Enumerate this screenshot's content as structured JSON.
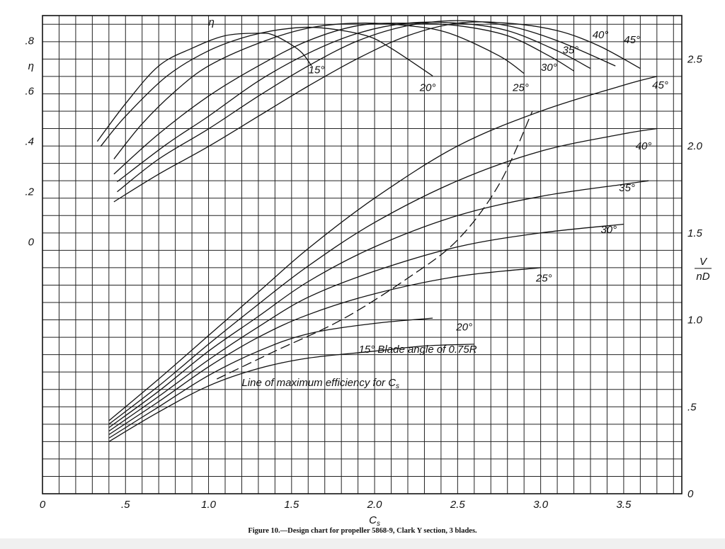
{
  "caption": "Figure 10.—Design chart for propeller 5868-9, Clark Y section, 3 blades.",
  "chart_data": {
    "type": "line",
    "title": "",
    "xlabel": "C",
    "xlabel_sub": "s",
    "xlim": [
      0,
      3.85
    ],
    "x_ticks": [
      0,
      0.5,
      1.0,
      1.5,
      2.0,
      2.5,
      3.0,
      3.5
    ],
    "x_tick_labels": [
      "0",
      ".5",
      "1.0",
      "1.5",
      "2.0",
      "2.5",
      "3.0",
      "3.5"
    ],
    "left_axis": {
      "label": "η",
      "ylim": [
        -1.0,
        0.9
      ],
      "ticks": [
        0,
        0.2,
        0.4,
        0.6,
        0.8
      ],
      "tick_labels": [
        "0",
        ".2",
        ".4",
        ".6",
        ".8"
      ]
    },
    "right_axis": {
      "label_num": "V",
      "label_den": "nD",
      "ylim": [
        0,
        2.75
      ],
      "ticks": [
        0,
        0.5,
        1.0,
        1.5,
        2.0,
        2.5
      ],
      "tick_labels": [
        "0",
        ".5",
        "1.0",
        "1.5",
        "2.0",
        "2.5"
      ]
    },
    "grid": true,
    "efficiency_label": "η",
    "efficiency_series": [
      {
        "name": "15°",
        "x": [
          0.33,
          0.5,
          0.7,
          0.9,
          1.1,
          1.3,
          1.4,
          1.55,
          1.62
        ],
        "y": [
          0.4,
          0.55,
          0.7,
          0.77,
          0.82,
          0.83,
          0.82,
          0.76,
          0.7
        ]
      },
      {
        "name": "20°",
        "x": [
          0.35,
          0.5,
          0.75,
          1.0,
          1.25,
          1.5,
          1.7,
          1.95,
          2.1,
          2.35
        ],
        "y": [
          0.38,
          0.5,
          0.66,
          0.76,
          0.82,
          0.85,
          0.85,
          0.82,
          0.77,
          0.66
        ]
      },
      {
        "name": "25°",
        "x": [
          0.43,
          0.6,
          0.8,
          1.0,
          1.3,
          1.6,
          1.9,
          2.2,
          2.45,
          2.75,
          2.9
        ],
        "y": [
          0.33,
          0.47,
          0.6,
          0.7,
          0.79,
          0.85,
          0.87,
          0.86,
          0.83,
          0.74,
          0.67
        ]
      },
      {
        "name": "30°",
        "x": [
          0.43,
          0.7,
          1.0,
          1.3,
          1.6,
          1.9,
          2.2,
          2.5,
          2.8,
          3.05,
          3.2
        ],
        "y": [
          0.27,
          0.43,
          0.58,
          0.7,
          0.8,
          0.86,
          0.87,
          0.86,
          0.82,
          0.74,
          0.68
        ]
      },
      {
        "name": "35°",
        "x": [
          0.45,
          0.75,
          1.0,
          1.3,
          1.6,
          1.9,
          2.2,
          2.5,
          2.8,
          3.1,
          3.3
        ],
        "y": [
          0.24,
          0.39,
          0.5,
          0.64,
          0.75,
          0.83,
          0.87,
          0.87,
          0.84,
          0.76,
          0.69
        ]
      },
      {
        "name": "40°",
        "x": [
          0.45,
          0.7,
          1.0,
          1.3,
          1.6,
          1.9,
          2.2,
          2.5,
          2.8,
          3.1,
          3.45
        ],
        "y": [
          0.2,
          0.33,
          0.45,
          0.58,
          0.7,
          0.8,
          0.86,
          0.88,
          0.86,
          0.8,
          0.7
        ]
      },
      {
        "name": "45°",
        "x": [
          0.43,
          0.7,
          1.0,
          1.3,
          1.6,
          1.9,
          2.2,
          2.5,
          2.8,
          3.1,
          3.35,
          3.6
        ],
        "y": [
          0.16,
          0.27,
          0.38,
          0.5,
          0.62,
          0.73,
          0.82,
          0.87,
          0.87,
          0.84,
          0.78,
          0.69
        ]
      }
    ],
    "vnd_series": [
      {
        "name": "15° Blade angle of 0.75R",
        "x": [
          0.4,
          0.7,
          1.0,
          1.3,
          1.6,
          2.0,
          2.3,
          2.6
        ],
        "y": [
          0.3,
          0.47,
          0.62,
          0.72,
          0.78,
          0.82,
          0.85,
          0.86
        ]
      },
      {
        "name": "20°",
        "x": [
          0.4,
          0.7,
          1.0,
          1.3,
          1.6,
          2.0,
          2.35
        ],
        "y": [
          0.32,
          0.5,
          0.68,
          0.82,
          0.92,
          0.98,
          1.01
        ]
      },
      {
        "name": "25°",
        "x": [
          0.4,
          0.7,
          1.0,
          1.3,
          1.6,
          2.0,
          2.5,
          3.0
        ],
        "y": [
          0.34,
          0.53,
          0.73,
          0.9,
          1.03,
          1.15,
          1.25,
          1.3
        ]
      },
      {
        "name": "30°",
        "x": [
          0.4,
          0.7,
          1.0,
          1.3,
          1.6,
          2.0,
          2.5,
          3.0,
          3.5
        ],
        "y": [
          0.36,
          0.56,
          0.77,
          0.96,
          1.13,
          1.28,
          1.42,
          1.5,
          1.55
        ]
      },
      {
        "name": "35°",
        "x": [
          0.4,
          0.7,
          1.0,
          1.3,
          1.6,
          2.0,
          2.5,
          3.0,
          3.5,
          3.65
        ],
        "y": [
          0.38,
          0.59,
          0.82,
          1.02,
          1.22,
          1.42,
          1.6,
          1.71,
          1.78,
          1.8
        ]
      },
      {
        "name": "40°",
        "x": [
          0.4,
          0.7,
          1.0,
          1.3,
          1.6,
          2.0,
          2.5,
          3.0,
          3.5,
          3.7
        ],
        "y": [
          0.4,
          0.62,
          0.86,
          1.09,
          1.31,
          1.56,
          1.8,
          1.97,
          2.07,
          2.1
        ]
      },
      {
        "name": "45°",
        "x": [
          0.4,
          0.7,
          1.0,
          1.3,
          1.6,
          2.0,
          2.5,
          3.0,
          3.5,
          3.7
        ],
        "y": [
          0.42,
          0.66,
          0.91,
          1.16,
          1.41,
          1.7,
          2.0,
          2.2,
          2.35,
          2.4
        ]
      }
    ],
    "max_efficiency_line": {
      "name": "Line of maximum efficiency for C",
      "name_sub": "s",
      "x": [
        1.05,
        1.4,
        1.8,
        2.2,
        2.5,
        2.75,
        2.95
      ],
      "y": [
        0.66,
        0.82,
        1.0,
        1.24,
        1.46,
        1.78,
        2.2
      ]
    },
    "efficiency_curve_labels": [
      {
        "text": "15°",
        "x": 1.65,
        "y": 0.67
      },
      {
        "text": "20°",
        "x": 2.32,
        "y": 0.6
      },
      {
        "text": "25°",
        "x": 2.88,
        "y": 0.6
      },
      {
        "text": "30°",
        "x": 3.05,
        "y": 0.68
      },
      {
        "text": "35°",
        "x": 3.18,
        "y": 0.75
      },
      {
        "text": "40°",
        "x": 3.36,
        "y": 0.81
      },
      {
        "text": "45°",
        "x": 3.55,
        "y": 0.79
      }
    ],
    "vnd_curve_labels": [
      {
        "text": "45°",
        "x": 3.72,
        "y": 2.33
      },
      {
        "text": "40°",
        "x": 3.62,
        "y": 1.98
      },
      {
        "text": "35°",
        "x": 3.52,
        "y": 1.74
      },
      {
        "text": "30°",
        "x": 3.41,
        "y": 1.5
      },
      {
        "text": "25°",
        "x": 3.02,
        "y": 1.22
      },
      {
        "text": "20°",
        "x": 2.54,
        "y": 0.94
      },
      {
        "text": "15° Blade angle of 0.75R",
        "x": 2.26,
        "y": 0.81
      }
    ],
    "max_eff_label": {
      "x": 1.2,
      "y": 0.62
    }
  }
}
